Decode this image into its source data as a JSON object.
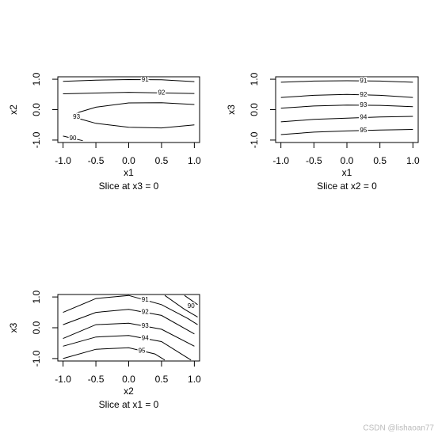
{
  "chart_data": [
    {
      "type": "contour",
      "xlabel": "x1",
      "ylabel": "x2",
      "subtitle": "Slice at x3 = 0",
      "color": "#000000",
      "xlim": [
        -1.08,
        1.08
      ],
      "ylim": [
        -1.08,
        1.08
      ],
      "xticks": [
        {
          "value": -1,
          "label": "-1.0"
        },
        {
          "value": -0.5,
          "label": "-0.5"
        },
        {
          "value": 0,
          "label": "0.0"
        },
        {
          "value": 0.5,
          "label": "0.5"
        },
        {
          "value": 1,
          "label": "1.0"
        }
      ],
      "yticks": [
        {
          "value": -1,
          "label": "-1.0"
        },
        {
          "value": 0,
          "label": "0.0"
        },
        {
          "value": 1,
          "label": "1.0"
        }
      ],
      "series": [
        {
          "name": "91",
          "x": [
            -1,
            -0.5,
            0,
            0.5,
            1
          ],
          "y": [
            0.93,
            0.97,
            0.99,
            0.98,
            0.92
          ]
        },
        {
          "name": "92",
          "x": [
            -1,
            0,
            1
          ],
          "y": [
            0.52,
            0.57,
            0.53
          ]
        },
        {
          "name": "93",
          "x": [
            1,
            0.5,
            0,
            -0.5,
            -0.75,
            -0.84,
            -0.75,
            -0.5,
            0,
            0.5,
            1
          ],
          "y": [
            0.17,
            0.23,
            0.22,
            0.08,
            -0.08,
            -0.18,
            -0.3,
            -0.45,
            -0.58,
            -0.6,
            -0.5
          ]
        },
        {
          "name": "90",
          "x": [
            -1,
            -0.7
          ],
          "y": [
            -0.87,
            -1.02
          ]
        }
      ]
    },
    {
      "type": "contour",
      "xlabel": "x1",
      "ylabel": "x3",
      "subtitle": "Slice at x2 = 0",
      "color": "#000000",
      "xlim": [
        -1.08,
        1.08
      ],
      "ylim": [
        -1.08,
        1.08
      ],
      "xticks": [
        {
          "value": -1,
          "label": "-1.0"
        },
        {
          "value": -0.5,
          "label": "-0.5"
        },
        {
          "value": 0,
          "label": "0.0"
        },
        {
          "value": 0.5,
          "label": "0.5"
        },
        {
          "value": 1,
          "label": "1.0"
        }
      ],
      "yticks": [
        {
          "value": -1,
          "label": "-1.0"
        },
        {
          "value": 0,
          "label": "0.0"
        },
        {
          "value": 1,
          "label": "1.0"
        }
      ],
      "series": [
        {
          "name": "91",
          "x": [
            -1,
            -0.5,
            0,
            0.5,
            1
          ],
          "y": [
            0.9,
            0.94,
            0.95,
            0.94,
            0.9
          ]
        },
        {
          "name": "92",
          "x": [
            -1,
            -0.5,
            0,
            0.5,
            1
          ],
          "y": [
            0.4,
            0.47,
            0.5,
            0.47,
            0.4
          ]
        },
        {
          "name": "93",
          "x": [
            -1,
            -0.5,
            0,
            0.5,
            1
          ],
          "y": [
            0.05,
            0.12,
            0.15,
            0.14,
            0.1
          ]
        },
        {
          "name": "94",
          "x": [
            -1,
            -0.5,
            0,
            0.5,
            1
          ],
          "y": [
            -0.4,
            -0.32,
            -0.28,
            -0.24,
            -0.22
          ]
        },
        {
          "name": "95",
          "x": [
            -1,
            -0.5,
            0,
            0.5,
            1
          ],
          "y": [
            -0.82,
            -0.74,
            -0.7,
            -0.67,
            -0.65
          ]
        }
      ]
    },
    {
      "type": "contour",
      "xlabel": "x2",
      "ylabel": "x3",
      "subtitle": "Slice at x1 = 0",
      "color": "#000000",
      "xlim": [
        -1.08,
        1.08
      ],
      "ylim": [
        -1.08,
        1.08
      ],
      "xticks": [
        {
          "value": -1,
          "label": "-1.0"
        },
        {
          "value": -0.5,
          "label": "-0.5"
        },
        {
          "value": 0,
          "label": "0.0"
        },
        {
          "value": 0.5,
          "label": "0.5"
        },
        {
          "value": 1,
          "label": "1.0"
        }
      ],
      "yticks": [
        {
          "value": -1,
          "label": "-1.0"
        },
        {
          "value": 0,
          "label": "0.0"
        },
        {
          "value": 1,
          "label": "1.0"
        }
      ],
      "series": [
        {
          "name": "91",
          "x": [
            -1,
            -0.5,
            0,
            0.5,
            0.9,
            1.05
          ],
          "y": [
            0.5,
            0.95,
            1.05,
            0.75,
            0.3,
            0.1
          ]
        },
        {
          "name": "90",
          "x": [
            0.55,
            0.85,
            1.05,
            null,
            0.85,
            1.05
          ],
          "y": [
            1.05,
            0.6,
            0.35,
            null,
            1.05,
            0.75
          ]
        },
        {
          "name": "92",
          "x": [
            -1,
            -0.5,
            0,
            0.5,
            1
          ],
          "y": [
            0.1,
            0.5,
            0.6,
            0.4,
            -0.2
          ]
        },
        {
          "name": "93",
          "x": [
            -1,
            -0.5,
            0,
            0.5,
            1
          ],
          "y": [
            -0.35,
            0.1,
            0.15,
            -0.05,
            -0.6
          ]
        },
        {
          "name": "94",
          "x": [
            -1,
            -0.5,
            0,
            0.5,
            0.95
          ],
          "y": [
            -0.6,
            -0.3,
            -0.25,
            -0.45,
            -1.05
          ]
        },
        {
          "name": "95",
          "x": [
            -1,
            -0.5,
            0,
            0.4,
            0.55
          ],
          "y": [
            -1,
            -0.7,
            -0.65,
            -0.85,
            -1.05
          ]
        }
      ]
    }
  ],
  "watermark": "CSDN @lishaoan77"
}
